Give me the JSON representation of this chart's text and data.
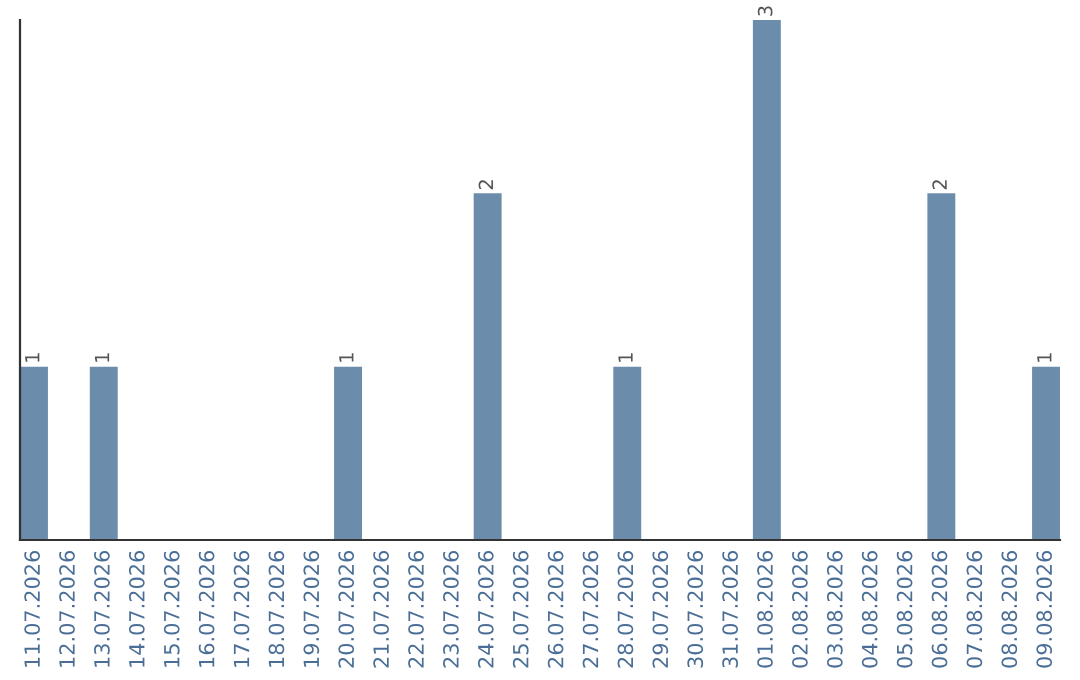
{
  "chart_data": {
    "type": "bar",
    "categories": [
      "11.07.2026",
      "12.07.2026",
      "13.07.2026",
      "14.07.2026",
      "15.07.2026",
      "16.07.2026",
      "17.07.2026",
      "18.07.2026",
      "19.07.2026",
      "20.07.2026",
      "21.07.2026",
      "22.07.2026",
      "23.07.2026",
      "24.07.2026",
      "25.07.2026",
      "26.07.2026",
      "27.07.2026",
      "28.07.2026",
      "29.07.2026",
      "30.07.2026",
      "31.07.2026",
      "01.08.2026",
      "02.08.2026",
      "03.08.2026",
      "04.08.2026",
      "05.08.2026",
      "06.08.2026",
      "07.08.2026",
      "08.08.2026",
      "09.08.2026"
    ],
    "values": [
      1,
      0,
      1,
      0,
      0,
      0,
      0,
      0,
      0,
      1,
      0,
      0,
      0,
      2,
      0,
      0,
      0,
      1,
      0,
      0,
      0,
      3,
      0,
      0,
      0,
      0,
      2,
      0,
      0,
      1
    ],
    "value_labels": [
      "1",
      null,
      "1",
      null,
      null,
      null,
      null,
      null,
      null,
      "1",
      null,
      null,
      null,
      "2",
      null,
      null,
      null,
      "1",
      null,
      null,
      null,
      "3",
      null,
      null,
      null,
      null,
      "2",
      null,
      null,
      "1"
    ],
    "color": "#6b8caa",
    "ylim": [
      0,
      3
    ],
    "tick_labels": "x",
    "grid": false,
    "legend": false
  }
}
